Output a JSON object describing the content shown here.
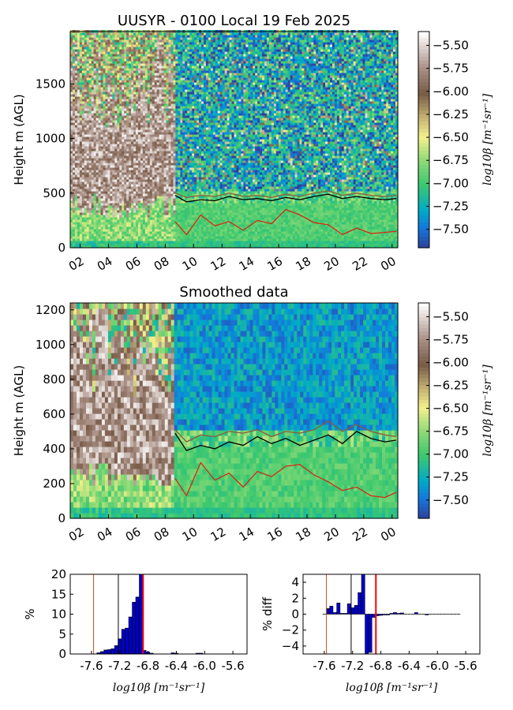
{
  "figure_title": "UUSYR - 0100 Local 19 Feb 2025",
  "chart_data": [
    {
      "type": "heatmap",
      "title": "UUSYR - 0100 Local 19 Feb 2025",
      "ylabel": "Height m (AGL)",
      "xlabel": "",
      "x_ticks": [
        "02",
        "04",
        "06",
        "08",
        "10",
        "12",
        "14",
        "16",
        "18",
        "20",
        "22",
        "00"
      ],
      "y_ticks": [
        0,
        500,
        1000,
        1500
      ],
      "xlim_hours": [
        1.3,
        24.4
      ],
      "ylim": [
        0,
        1980
      ],
      "colorbar_label": "log10β [m⁻¹sr⁻¹]",
      "colorbar_ticks": [
        "-5.50",
        "-5.75",
        "-6.00",
        "-6.25",
        "-6.50",
        "-6.75",
        "-7.00",
        "-7.25",
        "-7.50"
      ],
      "color_range": [
        -7.7,
        -5.35
      ],
      "series": [
        {
          "color": "#000000",
          "x_hours": [
            8.7,
            9.5,
            10.5,
            11.5,
            12.5,
            13.5,
            14.5,
            15.5,
            16.5,
            17.5,
            18.5,
            19.5,
            20.5,
            21.5,
            22.5,
            23.5,
            24.3
          ],
          "values": [
            480,
            420,
            440,
            430,
            470,
            440,
            450,
            430,
            460,
            440,
            470,
            490,
            450,
            470,
            450,
            440,
            450
          ]
        },
        {
          "color": "#8b5a3c",
          "x_hours": [
            8.7,
            9.5,
            10.5,
            11.5,
            12.5,
            13.5,
            14.5,
            15.5,
            16.5,
            17.5,
            18.5,
            19.5,
            20.5,
            21.5,
            22.5,
            23.5,
            24.3
          ],
          "values": [
            500,
            460,
            480,
            470,
            500,
            470,
            480,
            460,
            490,
            470,
            500,
            520,
            480,
            500,
            480,
            470,
            480
          ]
        },
        {
          "color": "#d22a12",
          "x_hours": [
            8.7,
            9.5,
            10.5,
            11.5,
            12.5,
            13.5,
            14.5,
            15.5,
            16.5,
            17.5,
            18.5,
            19.5,
            20.5,
            21.5,
            22.5,
            23.5,
            24.3
          ],
          "values": [
            240,
            120,
            300,
            200,
            240,
            160,
            250,
            220,
            350,
            300,
            230,
            210,
            120,
            180,
            130,
            140,
            150
          ]
        }
      ]
    },
    {
      "type": "heatmap",
      "title": "Smoothed data",
      "ylabel": "Height m (AGL)",
      "xlabel": "",
      "x_ticks": [
        "02",
        "04",
        "06",
        "08",
        "10",
        "12",
        "14",
        "16",
        "18",
        "20",
        "22",
        "00"
      ],
      "y_ticks": [
        0,
        200,
        400,
        600,
        800,
        1000,
        1200
      ],
      "xlim_hours": [
        1.3,
        24.4
      ],
      "ylim": [
        0,
        1240
      ],
      "colorbar_label": "log10β [m⁻¹sr⁻¹]",
      "colorbar_ticks": [
        "-5.50",
        "-5.75",
        "-6.00",
        "-6.25",
        "-6.50",
        "-6.75",
        "-7.00",
        "-7.25",
        "-7.50"
      ],
      "color_range": [
        -7.7,
        -5.35
      ],
      "series": [
        {
          "color": "#000000",
          "x_hours": [
            8.7,
            9.5,
            10.5,
            11.5,
            12.5,
            13.5,
            14.5,
            15.5,
            16.5,
            17.5,
            18.5,
            19.5,
            20.5,
            21.5,
            22.5,
            23.5,
            24.3
          ],
          "values": [
            490,
            390,
            420,
            400,
            440,
            420,
            470,
            430,
            460,
            420,
            450,
            480,
            430,
            500,
            460,
            440,
            450
          ]
        },
        {
          "color": "#8b5a3c",
          "x_hours": [
            8.7,
            9.5,
            10.5,
            11.5,
            12.5,
            13.5,
            14.5,
            15.5,
            16.5,
            17.5,
            18.5,
            19.5,
            20.5,
            21.5,
            22.5,
            23.5,
            24.3
          ],
          "values": [
            510,
            440,
            480,
            470,
            500,
            490,
            510,
            470,
            500,
            490,
            510,
            560,
            500,
            540,
            500,
            480,
            470
          ]
        },
        {
          "color": "#d22a12",
          "x_hours": [
            8.7,
            9.5,
            10.5,
            11.5,
            12.5,
            13.5,
            14.5,
            15.5,
            16.5,
            17.5,
            18.5,
            19.5,
            20.5,
            21.5,
            22.5,
            23.5,
            24.3
          ],
          "values": [
            230,
            130,
            320,
            220,
            260,
            180,
            270,
            240,
            300,
            310,
            250,
            210,
            160,
            180,
            130,
            120,
            150
          ]
        }
      ]
    },
    {
      "type": "bar",
      "title": "",
      "xlabel": "log10β [m⁻¹sr⁻¹]",
      "ylabel": "%",
      "x_ticks": [
        "-7.6",
        "-7.2",
        "-6.8",
        "-6.4",
        "-6.0",
        "-5.6"
      ],
      "xlim": [
        -7.9,
        -5.4
      ],
      "ylim": [
        0,
        20
      ],
      "y_ticks": [
        0,
        5,
        10,
        15,
        20
      ],
      "x": [
        -7.5,
        -7.45,
        -7.4,
        -7.35,
        -7.3,
        -7.25,
        -7.2,
        -7.15,
        -7.1,
        -7.05,
        -7.0,
        -6.95,
        -6.9,
        -6.85,
        -6.8,
        -6.75,
        -6.45,
        -6.4,
        -6.1,
        -6.05
      ],
      "values": [
        0.3,
        0.6,
        1.0,
        1.1,
        1.3,
        2.1,
        3.8,
        6.2,
        6.5,
        9.3,
        13.0,
        14.3,
        20.0,
        0.9,
        0.5,
        0.2,
        0.3,
        0.2,
        0.2,
        0.2
      ],
      "markers": [
        {
          "x": -7.57,
          "color": "#c0521e"
        },
        {
          "x": -7.22,
          "color": "#000000"
        },
        {
          "x": -6.87,
          "color": "#ff0000"
        }
      ]
    },
    {
      "type": "bar",
      "title": "",
      "xlabel": "log10β [m⁻¹sr⁻¹]",
      "ylabel": "% diff",
      "x_ticks": [
        "-7.6",
        "-7.2",
        "-6.8",
        "-6.4",
        "-6.0",
        "-5.6"
      ],
      "xlim": [
        -7.9,
        -5.4
      ],
      "ylim": [
        -5,
        5
      ],
      "y_ticks": [
        -4,
        -2,
        0,
        2,
        4
      ],
      "x": [
        -7.6,
        -7.55,
        -7.5,
        -7.45,
        -7.4,
        -7.35,
        -7.3,
        -7.25,
        -7.2,
        -7.15,
        -7.1,
        -7.05,
        -7.0,
        -6.95,
        -6.9,
        -6.85,
        -6.8,
        -6.75,
        -6.7,
        -6.65,
        -6.6,
        -6.55,
        -6.5,
        -6.45,
        -6.4,
        -6.35,
        -6.3,
        -6.25,
        -6.2,
        -6.15,
        -6.1,
        -6.05,
        -6.0,
        -5.95,
        -5.9,
        -5.85,
        -5.8,
        -5.75,
        -5.7
      ],
      "values": [
        0.0,
        0.7,
        1.0,
        0.2,
        1.4,
        0.1,
        0.1,
        1.3,
        0.8,
        1.1,
        2.7,
        5.0,
        -5.0,
        -4.8,
        -0.4,
        -0.2,
        -0.15,
        -0.1,
        -0.1,
        0.1,
        0.2,
        0.1,
        0.15,
        0.0,
        0.0,
        0.0,
        0.2,
        0.0,
        0.0,
        -0.1,
        0.0,
        0.0,
        0.0,
        0.0,
        0.0,
        0.0,
        0.0,
        0.0,
        0.0
      ],
      "markers": [
        {
          "x": -7.57,
          "color": "#c0521e"
        },
        {
          "x": -7.22,
          "color": "#000000"
        },
        {
          "x": -6.87,
          "color": "#ff0000"
        }
      ]
    }
  ]
}
